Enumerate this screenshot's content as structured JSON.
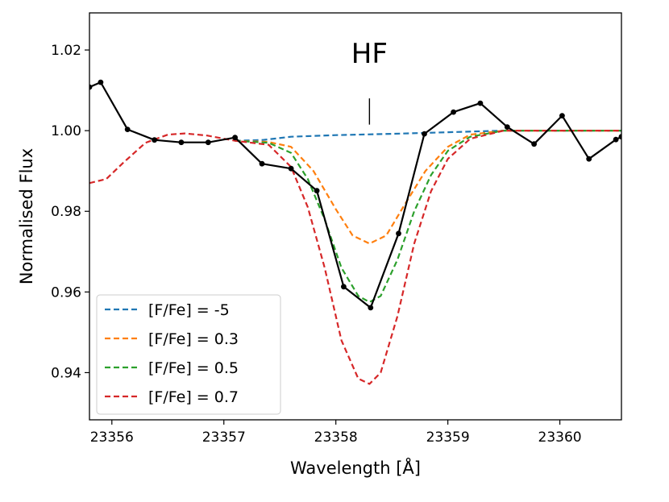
{
  "chart_data": {
    "type": "line",
    "title": "",
    "xlabel": "Wavelength [Å]",
    "ylabel": "Normalised Flux",
    "xlim": [
      23355.8,
      23360.55
    ],
    "ylim": [
      0.9283,
      1.0292
    ],
    "xticks": [
      23356,
      23357,
      23358,
      23359,
      23360
    ],
    "xtick_labels": [
      "23356",
      "23357",
      "23358",
      "23359",
      "23360"
    ],
    "yticks": [
      0.94,
      0.96,
      0.98,
      1.0,
      1.02
    ],
    "ytick_labels": [
      "0.94",
      "0.96",
      "0.98",
      "1.00",
      "1.02"
    ],
    "grid": false,
    "legend_position": "bottom-left",
    "annotation": {
      "text": "HF",
      "x": 23358.3,
      "marker_y": [
        1.0015,
        1.008
      ]
    },
    "observed": {
      "name": "observed",
      "color": "#000000",
      "x": [
        23355.8,
        23355.9,
        23356.14,
        23356.38,
        23356.62,
        23356.86,
        23357.1,
        23357.34,
        23357.6,
        23357.83,
        23358.07,
        23358.31,
        23358.56,
        23358.79,
        23359.05,
        23359.29,
        23359.53,
        23359.77,
        23360.02,
        23360.26,
        23360.5,
        23360.55
      ],
      "y": [
        1.0108,
        1.012,
        1.0003,
        0.9977,
        0.9971,
        0.9971,
        0.9983,
        0.9918,
        0.9906,
        0.9851,
        0.9613,
        0.9561,
        0.9745,
        0.9992,
        1.0046,
        1.0068,
        1.0009,
        0.9967,
        1.0037,
        0.993,
        0.9978,
        0.9985
      ]
    },
    "series": [
      {
        "name": "[F/Fe] = -5",
        "color": "#1f77b4",
        "x": [
          23357.1,
          23357.35,
          23357.6,
          23358.0,
          23358.5,
          23359.0,
          23359.5,
          23360.0,
          23360.55
        ],
        "y": [
          0.9975,
          0.9977,
          0.9985,
          0.9989,
          0.9992,
          0.9996,
          1.0,
          1.0,
          1.0
        ]
      },
      {
        "name": "[F/Fe] = 0.3",
        "color": "#ff7f0e",
        "x": [
          23357.1,
          23357.4,
          23357.6,
          23357.8,
          23358.0,
          23358.15,
          23358.3,
          23358.45,
          23358.6,
          23358.8,
          23359.0,
          23359.2,
          23359.5,
          23360.0,
          23360.55
        ],
        "y": [
          0.9975,
          0.9972,
          0.996,
          0.99,
          0.9805,
          0.974,
          0.972,
          0.974,
          0.981,
          0.99,
          0.996,
          0.999,
          1.0,
          1.0,
          1.0
        ]
      },
      {
        "name": "[F/Fe] = 0.5",
        "color": "#2ca02c",
        "x": [
          23357.1,
          23357.4,
          23357.6,
          23357.75,
          23357.9,
          23358.05,
          23358.2,
          23358.3,
          23358.4,
          23358.55,
          23358.7,
          23358.85,
          23359.0,
          23359.2,
          23359.5,
          23360.0,
          23360.55
        ],
        "y": [
          0.9975,
          0.997,
          0.9945,
          0.988,
          0.978,
          0.966,
          0.959,
          0.9575,
          0.959,
          0.968,
          0.98,
          0.989,
          0.995,
          0.9985,
          1.0,
          1.0,
          1.0
        ]
      },
      {
        "name": "[F/Fe] = 0.7",
        "color": "#d62728",
        "x": [
          23355.8,
          23355.95,
          23356.1,
          23356.3,
          23356.5,
          23356.65,
          23356.85,
          23357.1,
          23357.4,
          23357.6,
          23357.75,
          23357.9,
          23358.05,
          23358.2,
          23358.3,
          23358.4,
          23358.55,
          23358.7,
          23358.85,
          23359.0,
          23359.2,
          23359.5,
          23360.0,
          23360.55
        ],
        "y": [
          0.987,
          0.988,
          0.992,
          0.997,
          0.999,
          0.9993,
          0.9988,
          0.9975,
          0.9965,
          0.991,
          0.981,
          0.966,
          0.948,
          0.9385,
          0.9372,
          0.94,
          0.954,
          0.972,
          0.985,
          0.993,
          0.998,
          1.0,
          1.0,
          1.0
        ]
      }
    ]
  }
}
